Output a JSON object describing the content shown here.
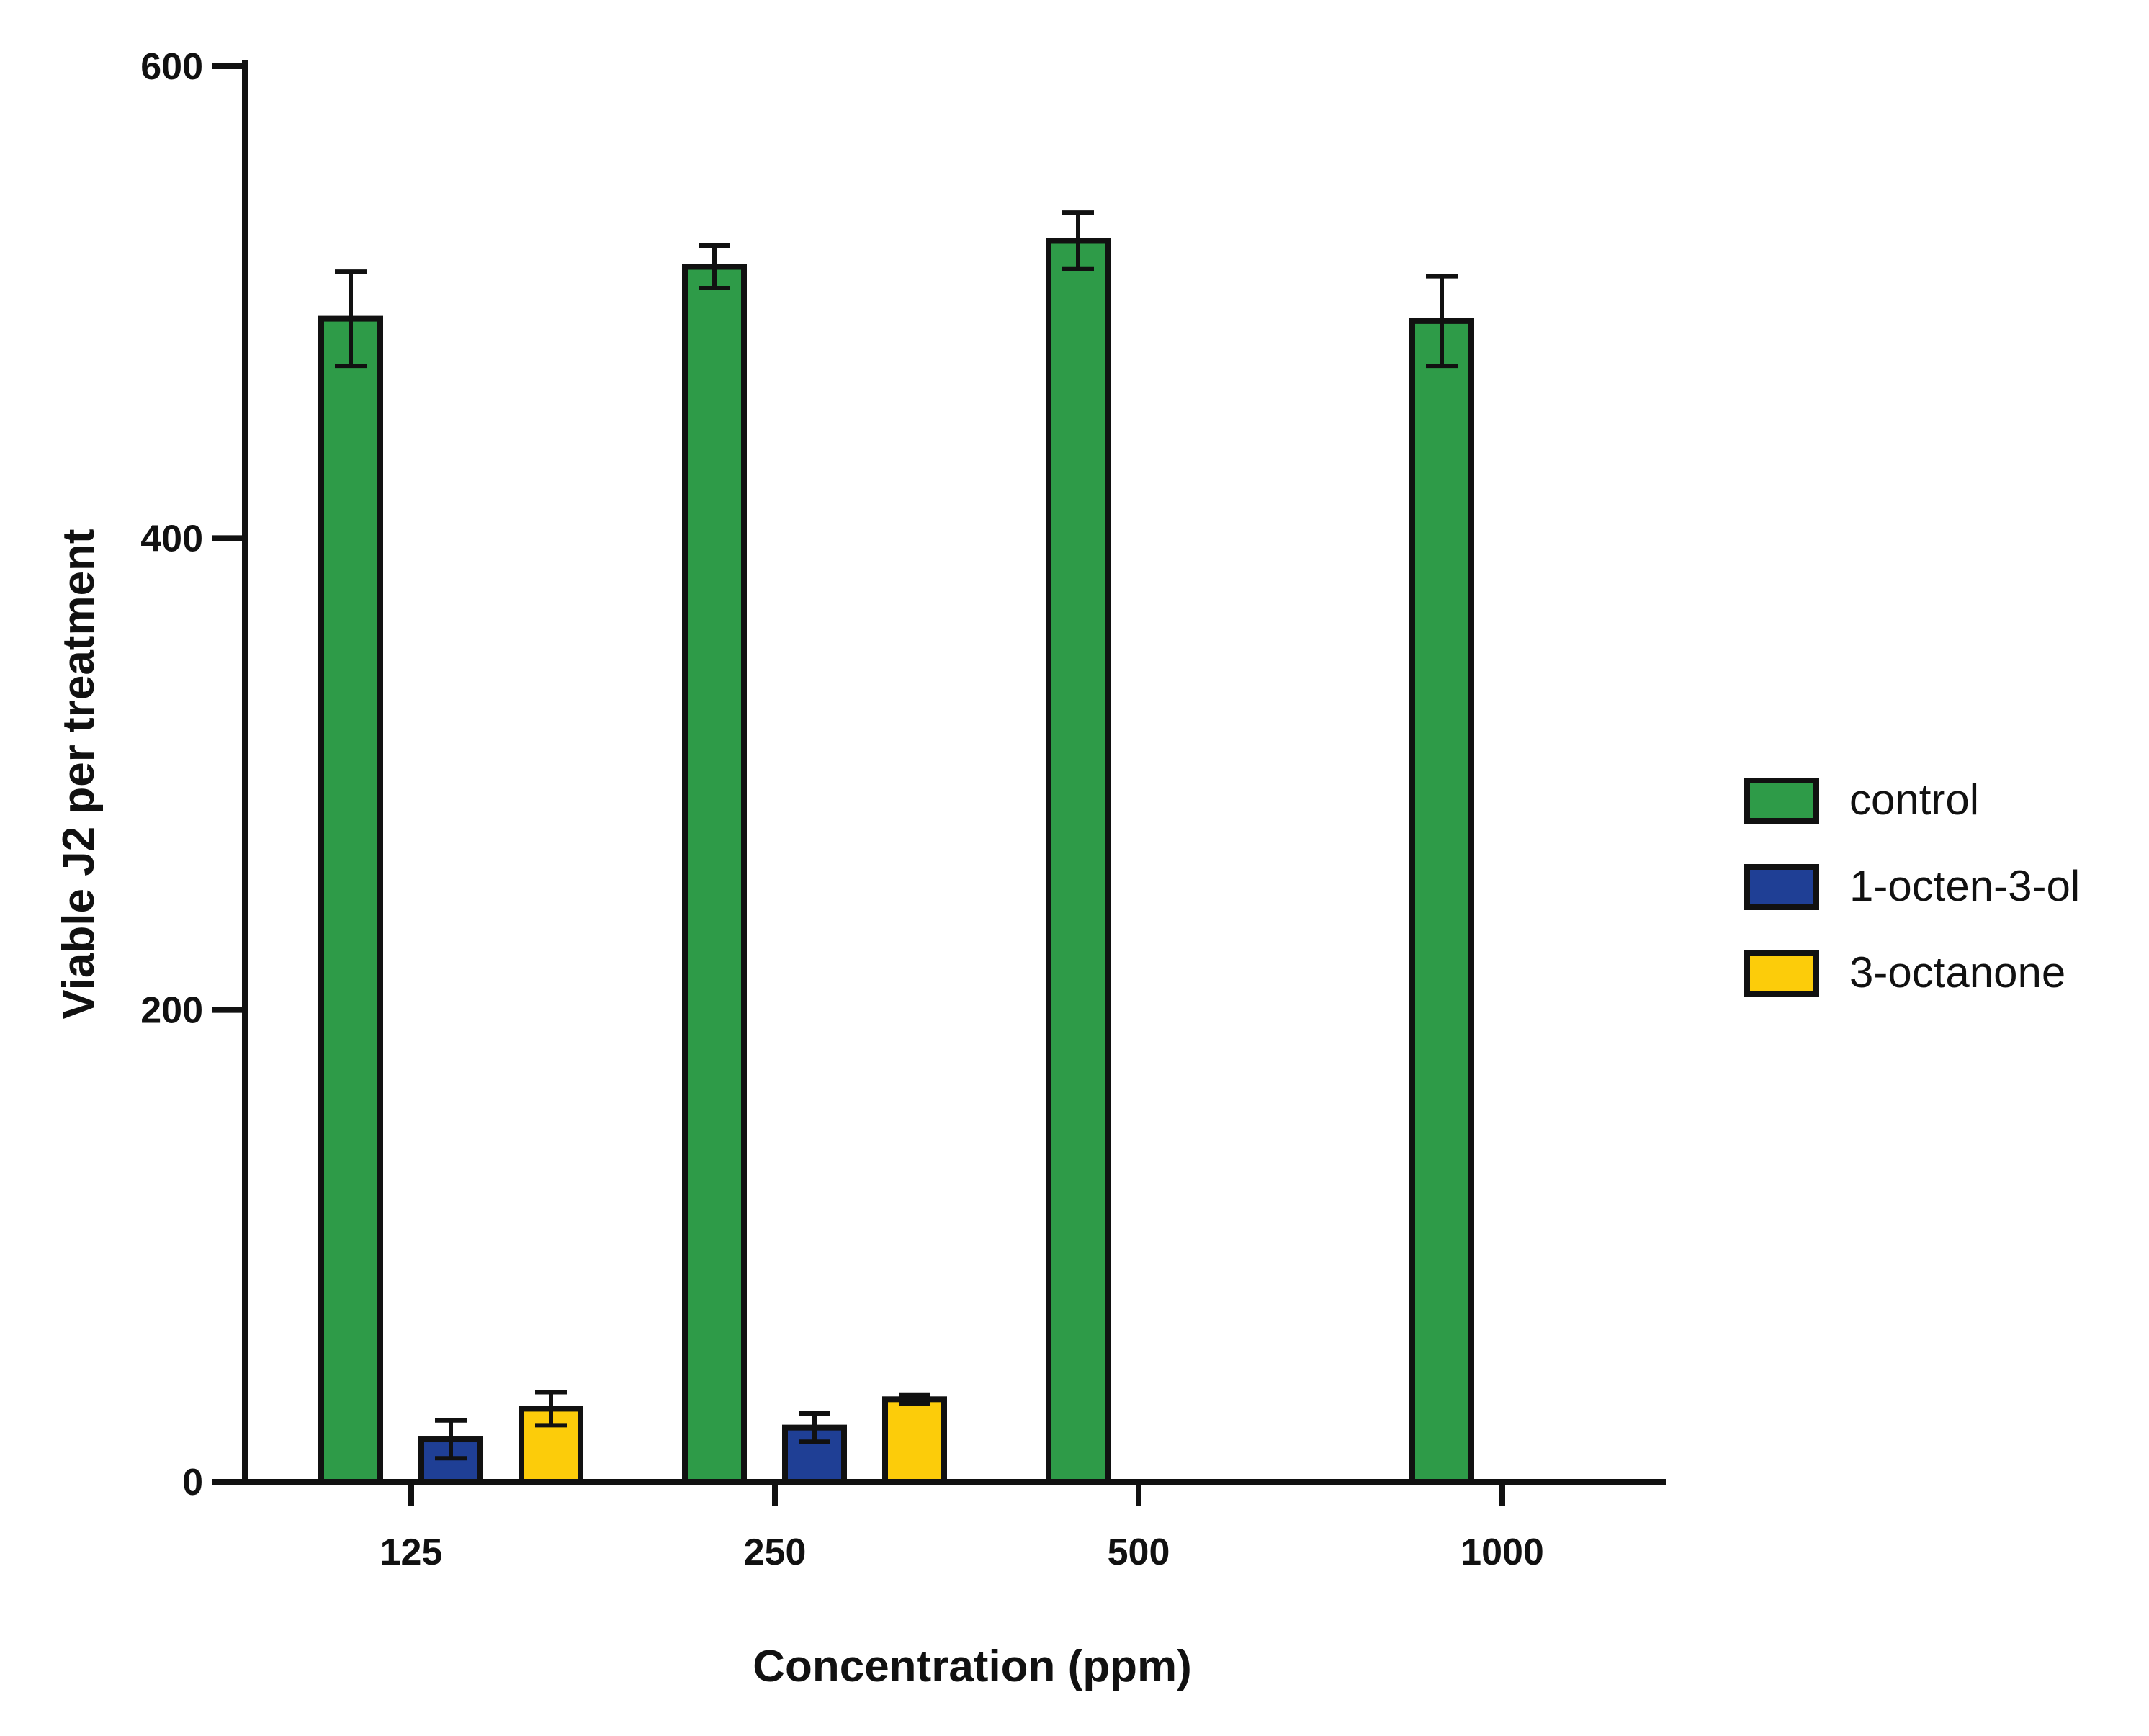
{
  "chart_data": {
    "type": "bar",
    "title": "",
    "xlabel": "Concentration (ppm)",
    "ylabel": "Viable J2 per treatment",
    "categories": [
      "125",
      "250",
      "500",
      "1000"
    ],
    "ylim": [
      0,
      600
    ],
    "yticks": [
      0,
      200,
      400,
      600
    ],
    "grid": false,
    "legend_position": "right",
    "series": [
      {
        "name": "control",
        "color": "#2e9b48",
        "values": [
          493,
          515,
          526,
          492
        ],
        "errors": [
          20,
          9,
          12,
          19
        ]
      },
      {
        "name": "1-octen-3-ol",
        "color": "#1f3f95",
        "values": [
          18,
          23,
          0,
          0
        ],
        "errors": [
          8,
          6,
          0,
          0
        ]
      },
      {
        "name": "3-octanone",
        "color": "#fccc0a",
        "values": [
          31,
          35,
          0,
          0
        ],
        "errors": [
          7,
          2,
          0,
          0
        ]
      }
    ]
  }
}
